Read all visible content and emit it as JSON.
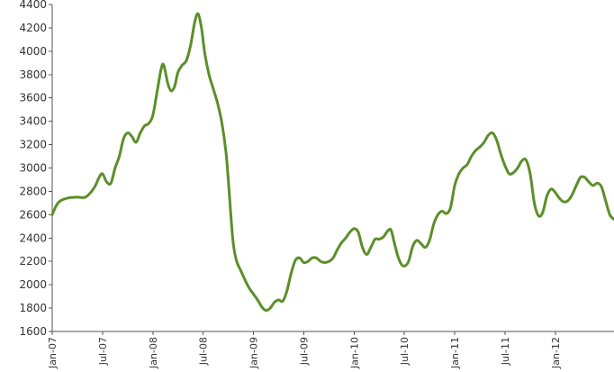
{
  "chart_data": {
    "type": "line",
    "title": "",
    "xlabel": "",
    "ylabel": "",
    "grid": false,
    "legend": "none",
    "ylim": [
      1600,
      4400
    ],
    "yticks": [
      1600,
      1800,
      2000,
      2200,
      2400,
      2600,
      2800,
      3000,
      3200,
      3400,
      3600,
      3800,
      4000,
      4200,
      4400
    ],
    "xlim": [
      0,
      67
    ],
    "xticks": [
      {
        "x": 0,
        "label": "Jan-07"
      },
      {
        "x": 6,
        "label": "Jul-07"
      },
      {
        "x": 12,
        "label": "Jan-08"
      },
      {
        "x": 18,
        "label": "Jul-08"
      },
      {
        "x": 24,
        "label": "Jan-09"
      },
      {
        "x": 30,
        "label": "Jul-09"
      },
      {
        "x": 36,
        "label": "Jan-10"
      },
      {
        "x": 42,
        "label": "Jul-10"
      },
      {
        "x": 48,
        "label": "Jan-11"
      },
      {
        "x": 54,
        "label": "Jul-11"
      },
      {
        "x": 60,
        "label": "Jan-12"
      }
    ],
    "colors": {
      "line": "#5b8f2a",
      "axis": "#555555",
      "text": "#333333"
    },
    "series": [
      {
        "points": [
          [
            0,
            2600
          ],
          [
            0.5,
            2680
          ],
          [
            1,
            2720
          ],
          [
            2,
            2745
          ],
          [
            3,
            2750
          ],
          [
            4,
            2752
          ],
          [
            5,
            2830
          ],
          [
            5.6,
            2920
          ],
          [
            6,
            2950
          ],
          [
            6.5,
            2880
          ],
          [
            7,
            2870
          ],
          [
            7.5,
            3000
          ],
          [
            8,
            3100
          ],
          [
            8.5,
            3250
          ],
          [
            9,
            3300
          ],
          [
            9.5,
            3270
          ],
          [
            10,
            3220
          ],
          [
            10.5,
            3300
          ],
          [
            11,
            3360
          ],
          [
            11.5,
            3380
          ],
          [
            12,
            3450
          ],
          [
            12.5,
            3650
          ],
          [
            13,
            3850
          ],
          [
            13.3,
            3880
          ],
          [
            13.8,
            3720
          ],
          [
            14.2,
            3660
          ],
          [
            14.6,
            3700
          ],
          [
            15,
            3820
          ],
          [
            15.5,
            3880
          ],
          [
            16,
            3920
          ],
          [
            16.5,
            4050
          ],
          [
            17,
            4250
          ],
          [
            17.4,
            4320
          ],
          [
            17.8,
            4200
          ],
          [
            18.2,
            3980
          ],
          [
            18.7,
            3800
          ],
          [
            19.2,
            3680
          ],
          [
            19.7,
            3560
          ],
          [
            20.2,
            3400
          ],
          [
            20.7,
            3150
          ],
          [
            21,
            2900
          ],
          [
            21.3,
            2600
          ],
          [
            21.6,
            2350
          ],
          [
            22,
            2200
          ],
          [
            22.5,
            2120
          ],
          [
            23,
            2040
          ],
          [
            23.5,
            1970
          ],
          [
            24,
            1920
          ],
          [
            24.5,
            1870
          ],
          [
            25,
            1810
          ],
          [
            25.5,
            1780
          ],
          [
            26,
            1800
          ],
          [
            26.5,
            1850
          ],
          [
            27,
            1870
          ],
          [
            27.5,
            1860
          ],
          [
            28,
            1950
          ],
          [
            28.5,
            2100
          ],
          [
            29,
            2210
          ],
          [
            29.5,
            2230
          ],
          [
            30,
            2190
          ],
          [
            30.5,
            2200
          ],
          [
            31,
            2230
          ],
          [
            31.5,
            2230
          ],
          [
            32,
            2200
          ],
          [
            32.5,
            2190
          ],
          [
            33,
            2200
          ],
          [
            33.5,
            2230
          ],
          [
            34,
            2300
          ],
          [
            34.5,
            2360
          ],
          [
            35,
            2400
          ],
          [
            35.5,
            2450
          ],
          [
            36,
            2480
          ],
          [
            36.5,
            2450
          ],
          [
            37,
            2320
          ],
          [
            37.5,
            2260
          ],
          [
            38,
            2320
          ],
          [
            38.5,
            2390
          ],
          [
            39,
            2390
          ],
          [
            39.5,
            2410
          ],
          [
            40,
            2460
          ],
          [
            40.4,
            2470
          ],
          [
            40.8,
            2360
          ],
          [
            41.2,
            2250
          ],
          [
            41.6,
            2180
          ],
          [
            42,
            2160
          ],
          [
            42.5,
            2200
          ],
          [
            43,
            2330
          ],
          [
            43.5,
            2380
          ],
          [
            44,
            2350
          ],
          [
            44.5,
            2320
          ],
          [
            45,
            2380
          ],
          [
            45.5,
            2520
          ],
          [
            46,
            2600
          ],
          [
            46.5,
            2630
          ],
          [
            47,
            2610
          ],
          [
            47.5,
            2660
          ],
          [
            48,
            2850
          ],
          [
            48.5,
            2950
          ],
          [
            49,
            3000
          ],
          [
            49.5,
            3030
          ],
          [
            50,
            3100
          ],
          [
            50.5,
            3150
          ],
          [
            51,
            3180
          ],
          [
            51.5,
            3220
          ],
          [
            52,
            3280
          ],
          [
            52.5,
            3300
          ],
          [
            53,
            3240
          ],
          [
            53.5,
            3120
          ],
          [
            54,
            3020
          ],
          [
            54.5,
            2950
          ],
          [
            55,
            2960
          ],
          [
            55.5,
            3000
          ],
          [
            56,
            3060
          ],
          [
            56.5,
            3070
          ],
          [
            57,
            2950
          ],
          [
            57.5,
            2700
          ],
          [
            58,
            2590
          ],
          [
            58.5,
            2620
          ],
          [
            59,
            2760
          ],
          [
            59.5,
            2820
          ],
          [
            60,
            2790
          ],
          [
            60.5,
            2740
          ],
          [
            61,
            2710
          ],
          [
            61.5,
            2720
          ],
          [
            62,
            2770
          ],
          [
            62.5,
            2850
          ],
          [
            63,
            2920
          ],
          [
            63.5,
            2920
          ],
          [
            64,
            2880
          ],
          [
            64.5,
            2850
          ],
          [
            65,
            2870
          ],
          [
            65.5,
            2840
          ],
          [
            66,
            2720
          ],
          [
            66.5,
            2600
          ],
          [
            67,
            2560
          ]
        ]
      }
    ]
  }
}
